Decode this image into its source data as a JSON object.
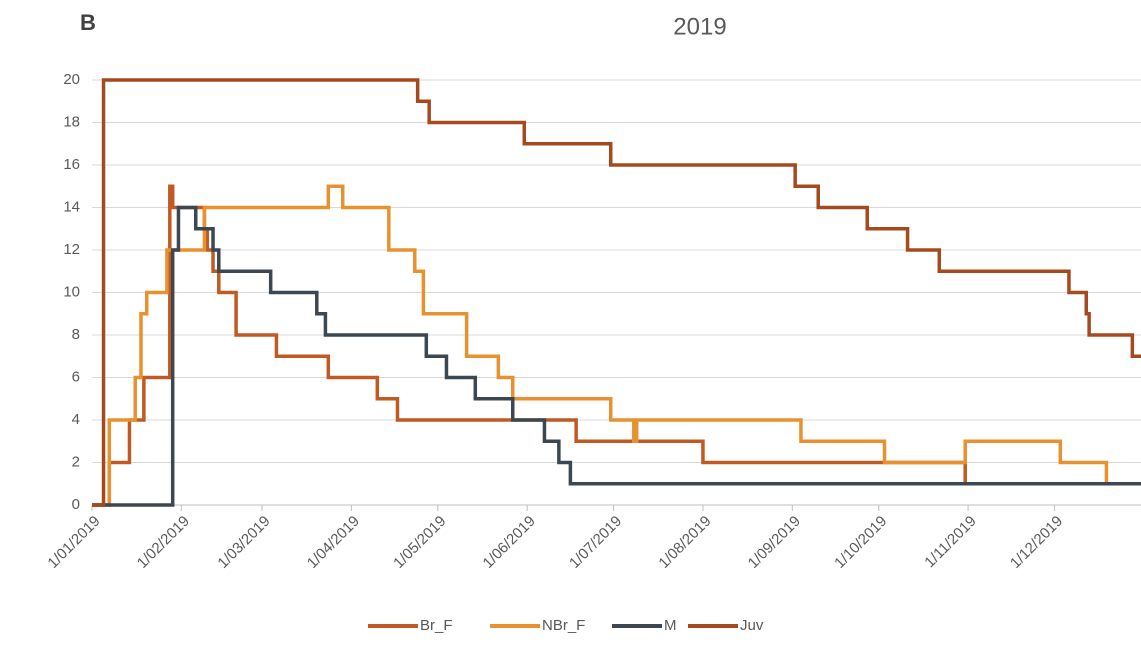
{
  "chart_data": {
    "type": "line",
    "step": true,
    "panel_label": "B",
    "title": "2019",
    "xlim": [
      "2019-01-01",
      "2019-12-31"
    ],
    "xticks": [
      {
        "value": "2019-01-01",
        "label": "1/01/2019"
      },
      {
        "value": "2019-02-01",
        "label": "1/02/2019"
      },
      {
        "value": "2019-03-01",
        "label": "1/03/2019"
      },
      {
        "value": "2019-04-01",
        "label": "1/04/2019"
      },
      {
        "value": "2019-05-01",
        "label": "1/05/2019"
      },
      {
        "value": "2019-06-01",
        "label": "1/06/2019"
      },
      {
        "value": "2019-07-01",
        "label": "1/07/2019"
      },
      {
        "value": "2019-08-01",
        "label": "1/08/2019"
      },
      {
        "value": "2019-09-01",
        "label": "1/09/2019"
      },
      {
        "value": "2019-10-01",
        "label": "1/10/2019"
      },
      {
        "value": "2019-11-01",
        "label": "1/11/2019"
      },
      {
        "value": "2019-12-01",
        "label": "1/12/2019"
      }
    ],
    "ylim": [
      0,
      20
    ],
    "yticks": [
      0,
      2,
      4,
      6,
      8,
      10,
      12,
      14,
      16,
      18,
      20
    ],
    "grid": true,
    "legend": "bottom",
    "series": [
      {
        "name": "Br_F",
        "color": "#c05a22",
        "x": [
          "2019-01-01",
          "2019-01-07",
          "2019-01-14",
          "2019-01-19",
          "2019-01-28",
          "2019-01-29",
          "2019-02-09",
          "2019-02-10",
          "2019-02-12",
          "2019-02-14",
          "2019-02-20",
          "2019-03-06",
          "2019-03-24",
          "2019-04-10",
          "2019-04-17",
          "2019-06-18",
          "2019-08-01",
          "2019-10-31"
        ],
        "values": [
          0,
          2,
          4,
          6,
          15,
          14,
          13,
          12,
          11,
          10,
          8,
          7,
          6,
          5,
          4,
          3,
          2,
          1
        ]
      },
      {
        "name": "NBr_F",
        "color": "#e8912f",
        "x": [
          "2019-01-01",
          "2019-01-07",
          "2019-01-16",
          "2019-01-18",
          "2019-01-20",
          "2019-01-27",
          "2019-02-09",
          "2019-03-24",
          "2019-03-29",
          "2019-04-14",
          "2019-04-23",
          "2019-04-26",
          "2019-05-11",
          "2019-05-22",
          "2019-05-27",
          "2019-06-30",
          "2019-07-08",
          "2019-07-09",
          "2019-09-04",
          "2019-10-03",
          "2019-10-31",
          "2019-12-03",
          "2019-12-19"
        ],
        "values": [
          0,
          4,
          6,
          9,
          10,
          12,
          14,
          15,
          14,
          12,
          11,
          9,
          7,
          6,
          5,
          4,
          3,
          4,
          3,
          2,
          3,
          2,
          1
        ]
      },
      {
        "name": "M",
        "color": "#3c4751",
        "x": [
          "2019-01-01",
          "2019-01-27",
          "2019-01-29",
          "2019-01-31",
          "2019-02-06",
          "2019-02-12",
          "2019-02-14",
          "2019-03-04",
          "2019-03-20",
          "2019-03-23",
          "2019-04-27",
          "2019-05-04",
          "2019-05-14",
          "2019-05-27",
          "2019-06-07",
          "2019-06-12",
          "2019-06-16"
        ],
        "values": [
          0,
          0,
          12,
          14,
          13,
          12,
          11,
          10,
          9,
          8,
          7,
          6,
          5,
          4,
          3,
          2,
          1
        ]
      },
      {
        "name": "Juv",
        "color": "#a54a1e",
        "x": [
          "2019-01-01",
          "2019-01-05",
          "2019-04-24",
          "2019-04-28",
          "2019-05-31",
          "2019-06-30",
          "2019-09-02",
          "2019-09-10",
          "2019-09-27",
          "2019-10-11",
          "2019-10-22",
          "2019-12-06",
          "2019-12-12",
          "2019-12-13",
          "2019-12-28"
        ],
        "values": [
          0,
          20,
          19,
          18,
          17,
          16,
          15,
          14,
          13,
          12,
          11,
          10,
          9,
          8,
          7
        ]
      }
    ]
  }
}
